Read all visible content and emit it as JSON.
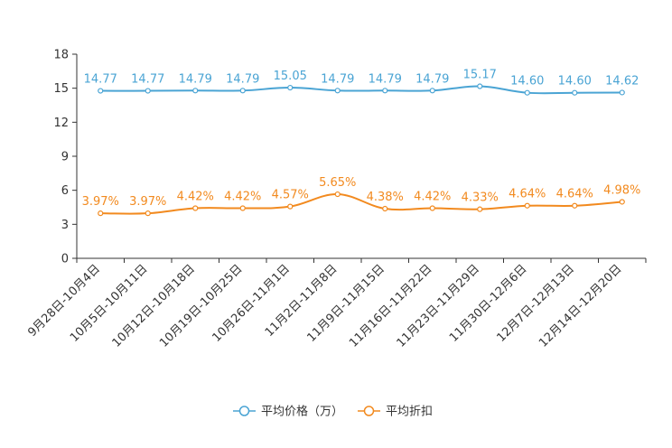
{
  "chart_data": {
    "type": "line",
    "categories": [
      "9月28日-10月4日",
      "10月5日-10月11日",
      "10月12日-10月18日",
      "10月19日-10月25日",
      "10月26日-11月1日",
      "11月2日-11月8日",
      "11月9日-11月15日",
      "11月16日-11月22日",
      "11月23日-11月29日",
      "11月30日-12月6日",
      "12月7日-12月13日",
      "12月14日-12月20日"
    ],
    "series": [
      {
        "name": "平均价格（万）",
        "color": "#4aa4d4",
        "values": [
          14.77,
          14.77,
          14.79,
          14.79,
          15.05,
          14.79,
          14.79,
          14.79,
          15.17,
          14.6,
          14.6,
          14.62
        ],
        "labels": [
          "14.77",
          "14.77",
          "14.79",
          "14.79",
          "15.05",
          "14.79",
          "14.79",
          "14.79",
          "15.17",
          "14.60",
          "14.60",
          "14.62"
        ]
      },
      {
        "name": "平均折扣",
        "color": "#f28a1f",
        "values": [
          3.97,
          3.97,
          4.42,
          4.42,
          4.57,
          5.65,
          4.38,
          4.42,
          4.33,
          4.64,
          4.64,
          4.98
        ],
        "labels": [
          "3.97%",
          "3.97%",
          "4.42%",
          "4.42%",
          "4.57%",
          "5.65%",
          "4.38%",
          "4.42%",
          "4.33%",
          "4.64%",
          "4.64%",
          "4.98%"
        ]
      }
    ],
    "y_ticks": [
      "0",
      "3",
      "6",
      "9",
      "12",
      "15",
      "18"
    ],
    "ylim": [
      0,
      18
    ],
    "grid": false,
    "legend_position": "bottom-center",
    "title": "",
    "xlabel": "",
    "ylabel": ""
  }
}
